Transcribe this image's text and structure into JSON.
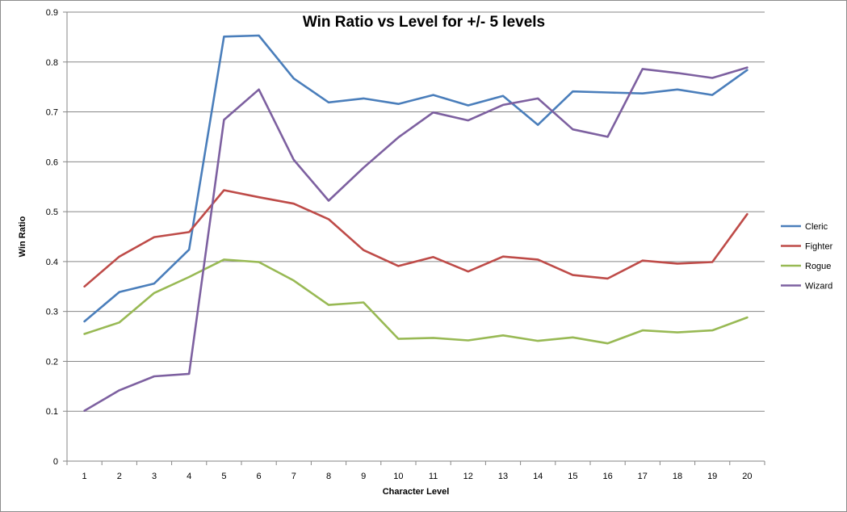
{
  "chart_data": {
    "type": "line",
    "title": "Win Ratio vs Level for +/- 5 levels",
    "xlabel": "Character Level",
    "ylabel": "Win Ratio",
    "ylim": [
      0,
      0.9
    ],
    "yticks": [
      "0",
      "0.1",
      "0.2",
      "0.3",
      "0.4",
      "0.5",
      "0.6",
      "0.7",
      "0.8",
      "0.9"
    ],
    "categories": [
      "1",
      "2",
      "3",
      "4",
      "5",
      "6",
      "7",
      "8",
      "9",
      "10",
      "11",
      "12",
      "13",
      "14",
      "15",
      "16",
      "17",
      "18",
      "19",
      "20"
    ],
    "grid": "horizontal",
    "legend_position": "right",
    "series": [
      {
        "name": "Cleric",
        "color": "#4a7ebb",
        "values": [
          0.28,
          0.339,
          0.356,
          0.424,
          0.851,
          0.853,
          0.767,
          0.719,
          0.727,
          0.716,
          0.734,
          0.713,
          0.732,
          0.674,
          0.741,
          0.739,
          0.737,
          0.745,
          0.734,
          0.784
        ]
      },
      {
        "name": "Fighter",
        "color": "#be4b48",
        "values": [
          0.35,
          0.41,
          0.449,
          0.459,
          0.543,
          0.529,
          0.516,
          0.485,
          0.423,
          0.391,
          0.409,
          0.38,
          0.41,
          0.404,
          0.373,
          0.366,
          0.402,
          0.396,
          0.399,
          0.495
        ]
      },
      {
        "name": "Rogue",
        "color": "#98b954",
        "values": [
          0.255,
          0.278,
          0.337,
          0.369,
          0.404,
          0.399,
          0.362,
          0.313,
          0.318,
          0.245,
          0.247,
          0.242,
          0.252,
          0.241,
          0.248,
          0.236,
          0.262,
          0.258,
          0.262,
          0.288
        ]
      },
      {
        "name": "Wizard",
        "color": "#7d60a0",
        "values": [
          0.101,
          0.142,
          0.17,
          0.175,
          0.684,
          0.745,
          0.604,
          0.522,
          0.588,
          0.649,
          0.699,
          0.683,
          0.714,
          0.727,
          0.665,
          0.65,
          0.786,
          0.778,
          0.768,
          0.789
        ]
      }
    ]
  }
}
